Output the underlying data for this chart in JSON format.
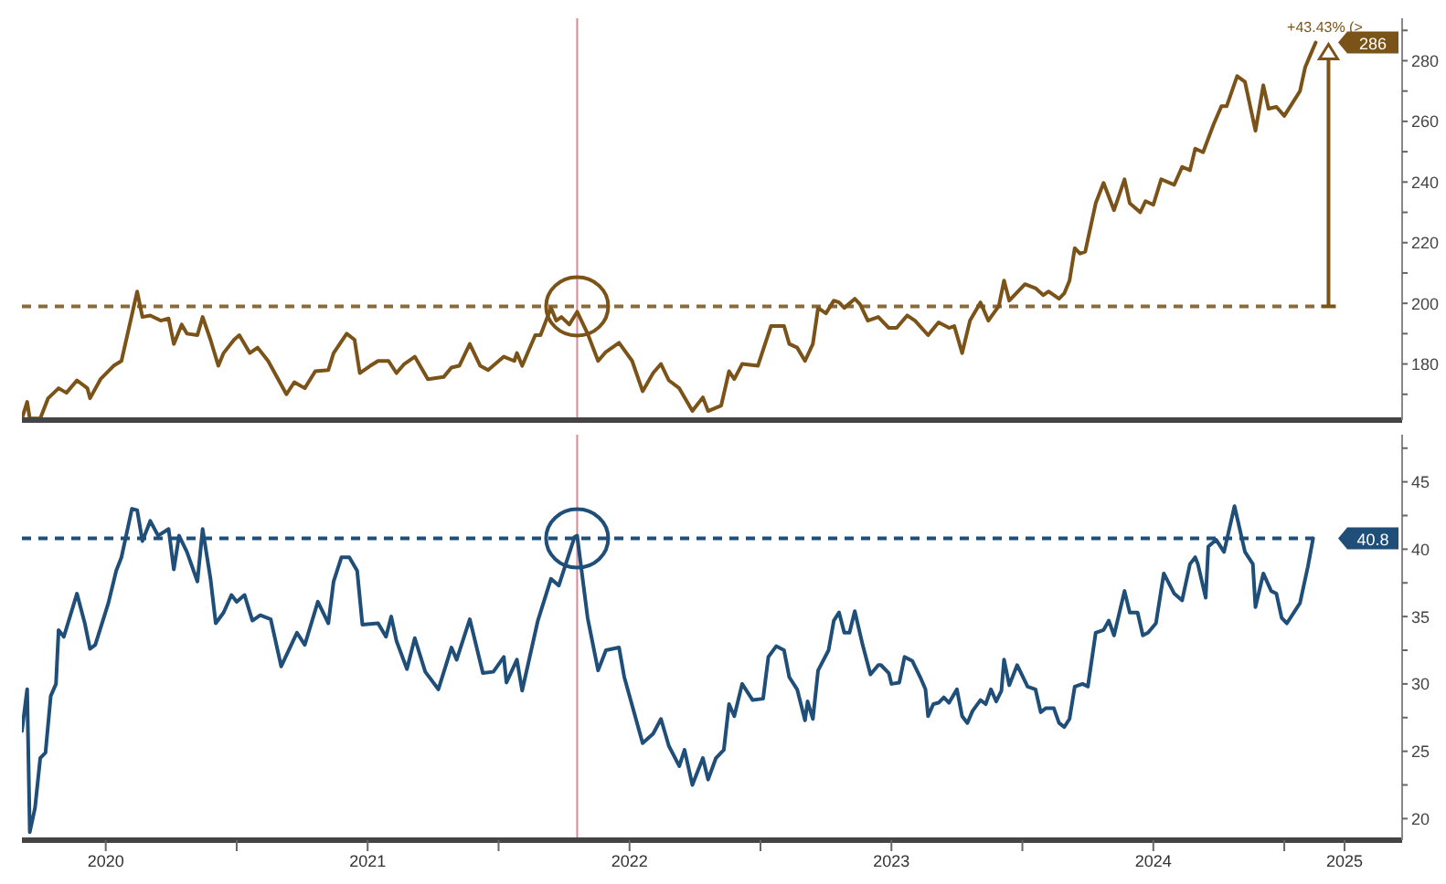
{
  "chart_data": [
    {
      "type": "line",
      "tick_labels": "y",
      "xlim": [
        2020.18,
        2025.45
      ],
      "ylim": [
        161.5,
        294
      ],
      "yticks": [
        {
          "value": 170,
          "label": null
        },
        180,
        {
          "value": 190,
          "label": null
        },
        200,
        {
          "value": 210,
          "label": null
        },
        220,
        {
          "value": 230,
          "label": null
        },
        240,
        {
          "value": 250,
          "label": null
        },
        260,
        {
          "value": 270,
          "label": null
        },
        280,
        {
          "value": 290,
          "label": null
        }
      ],
      "series": [
        {
          "color": "#7b5318",
          "x": [
            2020.18,
            2020.2,
            2020.21,
            2020.25,
            2020.28,
            2020.32,
            2020.35,
            2020.39,
            2020.43,
            2020.44,
            2020.48,
            2020.53,
            2020.56,
            2020.62,
            2020.64,
            2020.67,
            2020.71,
            2020.74,
            2020.76,
            2020.79,
            2020.81,
            2020.85,
            2020.87,
            2020.9,
            2020.93,
            2020.95,
            2020.99,
            2021.01,
            2021.05,
            2021.08,
            2021.12,
            2021.19,
            2021.22,
            2021.26,
            2021.3,
            2021.35,
            2021.37,
            2021.42,
            2021.45,
            2021.47,
            2021.51,
            2021.54,
            2021.58,
            2021.61,
            2021.64,
            2021.68,
            2021.73,
            2021.79,
            2021.82,
            2021.85,
            2021.89,
            2021.93,
            2021.96,
            2022.02,
            2022.06,
            2022.07,
            2022.09,
            2022.14,
            2022.16,
            2022.2,
            2022.22,
            2022.24,
            2022.27,
            2022.3,
            2022.34,
            2022.38,
            2022.41,
            2022.46,
            2022.51,
            2022.55,
            2022.59,
            2022.62,
            2022.65,
            2022.69,
            2022.74,
            2022.78,
            2022.8,
            2022.85,
            2022.88,
            2022.9,
            2022.93,
            2022.99,
            2023.04,
            2023.09,
            2023.11,
            2023.14,
            2023.17,
            2023.2,
            2023.22,
            2023.25,
            2023.28,
            2023.3,
            2023.32,
            2023.36,
            2023.38,
            2023.41,
            2023.45,
            2023.49,
            2023.52,
            2023.56,
            2023.59,
            2023.64,
            2023.68,
            2023.72,
            2023.74,
            2023.77,
            2023.8,
            2023.84,
            2023.87,
            2023.91,
            2023.93,
            2023.95,
            2024.01,
            2024.05,
            2024.08,
            2024.1,
            2024.14,
            2024.16,
            2024.18,
            2024.2,
            2024.22,
            2024.24,
            2024.28,
            2024.31,
            2024.35,
            2024.39,
            2024.41,
            2024.45,
            2024.47,
            2024.5,
            2024.53,
            2024.58,
            2024.61,
            2024.64,
            2024.66,
            2024.69,
            2024.73,
            2024.76,
            2024.78,
            2024.82,
            2024.85,
            2024.89,
            2024.92,
            2024.94,
            2024.97,
            2025.0,
            2025.03,
            2025.06,
            2025.08,
            2025.1,
            2025.12
          ],
          "values": [
            162,
            167.5,
            162,
            162,
            168.7,
            172,
            170.5,
            174.6,
            172,
            168.7,
            175,
            179.4,
            181,
            203.9,
            195.5,
            196,
            194.3,
            195,
            186.6,
            193,
            190,
            189.5,
            195.5,
            188,
            179.4,
            183.6,
            188,
            189.5,
            183.6,
            185.4,
            181,
            170,
            174,
            172,
            177.6,
            178,
            183.6,
            190,
            188,
            177,
            179.4,
            181,
            181,
            177,
            180,
            182.4,
            175,
            175.7,
            178.8,
            179.4,
            186.6,
            179.4,
            178,
            182.4,
            181,
            183.6,
            179.4,
            189.5,
            189.5,
            198.5,
            194.3,
            195.5,
            193,
            197.2,
            190,
            181,
            184,
            187,
            181,
            171,
            177,
            180,
            174.6,
            172,
            164.5,
            169,
            164.5,
            166.3,
            177.6,
            175,
            180,
            179.4,
            192.5,
            192.5,
            186.6,
            185.4,
            181,
            186.6,
            198.5,
            196.7,
            200.9,
            200.3,
            198.5,
            201.5,
            199.7,
            194.3,
            195.5,
            191.9,
            191.9,
            196,
            194.3,
            189.5,
            193.7,
            191.9,
            192.5,
            183.6,
            194.3,
            200.3,
            194.3,
            199.1,
            207.5,
            200.9,
            206.3,
            205,
            202.7,
            203.9,
            201.5,
            203.3,
            207.5,
            218.2,
            216.4,
            217,
            233,
            239.7,
            230.7,
            240.9,
            233,
            230,
            233.7,
            232.5,
            240.9,
            239.1,
            245,
            243.9,
            251,
            249.8,
            259,
            265,
            265,
            274.9,
            273,
            256.9,
            271.9,
            264.2,
            264.8,
            261.8,
            265.9,
            270,
            277.9,
            282,
            286
          ]
        }
      ],
      "ref_lines": [
        {
          "axis": "y",
          "value": 199,
          "color": "#8a6a3a",
          "line_style": "dashed"
        },
        {
          "axis": "x",
          "value": 2022.3,
          "color": "#d98a94",
          "line_style": "solid"
        }
      ],
      "annotations": [
        "+43.43% (>",
        "286"
      ]
    },
    {
      "type": "line",
      "xlim": [
        2020.18,
        2025.45
      ],
      "ylim": [
        18.4,
        48.5
      ],
      "xticks": [
        {
          "value": 2020.5,
          "label": "2020"
        },
        {
          "value": 2021,
          "label": null
        },
        {
          "value": 2021.5,
          "label": "2021"
        },
        {
          "value": 2022,
          "label": null
        },
        {
          "value": 2022.5,
          "label": "2022"
        },
        {
          "value": 2023,
          "label": null
        },
        {
          "value": 2023.5,
          "label": "2023"
        },
        {
          "value": 2024,
          "label": null
        },
        {
          "value": 2024.5,
          "label": "2024"
        },
        {
          "value": 2025,
          "label": null
        },
        {
          "value": 2025.23,
          "label": "2025"
        }
      ],
      "yticks": [
        20,
        {
          "value": 22.5,
          "label": null
        },
        25,
        {
          "value": 27.5,
          "label": null
        },
        30,
        {
          "value": 32.5,
          "label": null
        },
        35,
        {
          "value": 37.5,
          "label": null
        },
        40,
        {
          "value": 42.5,
          "label": null
        },
        45,
        {
          "value": 47.5,
          "label": null
        }
      ],
      "series": [
        {
          "color": "#1f4e79",
          "x": [
            2020.18,
            2020.2,
            2020.21,
            2020.23,
            2020.25,
            2020.27,
            2020.29,
            2020.31,
            2020.32,
            2020.34,
            2020.39,
            2020.42,
            2020.44,
            2020.46,
            2020.51,
            2020.54,
            2020.56,
            2020.6,
            2020.62,
            2020.64,
            2020.67,
            2020.7,
            2020.74,
            2020.76,
            2020.78,
            2020.81,
            2020.85,
            2020.87,
            2020.9,
            2020.92,
            2020.95,
            2020.98,
            2021.0,
            2021.03,
            2021.06,
            2021.09,
            2021.13,
            2021.17,
            2021.23,
            2021.26,
            2021.31,
            2021.35,
            2021.37,
            2021.4,
            2021.43,
            2021.46,
            2021.48,
            2021.54,
            2021.57,
            2021.59,
            2021.61,
            2021.65,
            2021.68,
            2021.72,
            2021.77,
            2021.82,
            2021.84,
            2021.89,
            2021.94,
            2021.98,
            2022.02,
            2022.03,
            2022.07,
            2022.09,
            2022.15,
            2022.2,
            2022.23,
            2022.29,
            2022.3,
            2022.34,
            2022.38,
            2022.41,
            2022.46,
            2022.48,
            2022.55,
            2022.59,
            2022.62,
            2022.65,
            2022.69,
            2022.71,
            2022.74,
            2022.78,
            2022.8,
            2022.83,
            2022.86,
            2022.88,
            2022.9,
            2022.93,
            2022.97,
            2023.01,
            2023.03,
            2023.06,
            2023.09,
            2023.11,
            2023.14,
            2023.17,
            2023.18,
            2023.2,
            2023.22,
            2023.26,
            2023.28,
            2023.3,
            2023.32,
            2023.34,
            2023.36,
            2023.39,
            2023.42,
            2023.45,
            2023.46,
            2023.49,
            2023.5,
            2023.53,
            2023.55,
            2023.58,
            2023.61,
            2023.63,
            2023.64,
            2023.66,
            2023.68,
            2023.7,
            2023.72,
            2023.75,
            2023.77,
            2023.79,
            2023.81,
            2023.84,
            2023.86,
            2023.88,
            2023.9,
            2023.92,
            2023.93,
            2023.95,
            2023.98,
            2024.02,
            2024.05,
            2024.07,
            2024.09,
            2024.12,
            2024.14,
            2024.16,
            2024.18,
            2024.2,
            2024.23,
            2024.25,
            2024.28,
            2024.31,
            2024.33,
            2024.35,
            2024.39,
            2024.41,
            2024.44,
            2024.46,
            2024.48,
            2024.51,
            2024.54,
            2024.58,
            2024.61,
            2024.64,
            2024.66,
            2024.67,
            2024.7,
            2024.71,
            2024.74,
            2024.77,
            2024.81,
            2024.85,
            2024.88,
            2024.89,
            2024.92,
            2024.95,
            2024.97,
            2024.99,
            2025.01,
            2025.06,
            2025.09,
            2025.11
          ],
          "values": [
            26.5,
            29.6,
            19.0,
            20.8,
            24.5,
            24.9,
            29.1,
            30.0,
            34.0,
            33.5,
            36.7,
            34.5,
            32.6,
            32.9,
            36.0,
            38.4,
            39.4,
            43.0,
            42.9,
            40.6,
            42.1,
            41.0,
            41.5,
            38.5,
            41.0,
            39.8,
            37.6,
            41.5,
            37.8,
            34.5,
            35.3,
            36.6,
            36.1,
            36.6,
            34.7,
            35.1,
            34.8,
            31.3,
            33.8,
            32.9,
            36.1,
            34.5,
            37.6,
            39.4,
            39.4,
            38.4,
            34.4,
            34.5,
            33.5,
            35.0,
            33.2,
            31.1,
            33.4,
            30.9,
            29.6,
            32.7,
            31.8,
            34.8,
            30.8,
            30.9,
            32.0,
            30.1,
            31.8,
            29.5,
            34.7,
            37.8,
            37.3,
            40.9,
            41.0,
            34.9,
            31.0,
            32.5,
            32.7,
            30.5,
            25.6,
            26.3,
            27.4,
            25.4,
            23.9,
            25.1,
            22.5,
            24.5,
            22.9,
            24.5,
            25.1,
            28.5,
            27.6,
            30.0,
            28.8,
            28.9,
            32.0,
            32.8,
            32.5,
            30.5,
            29.6,
            27.3,
            28.7,
            27.4,
            31.0,
            32.5,
            34.7,
            35.3,
            33.8,
            33.8,
            35.4,
            32.9,
            30.7,
            31.4,
            31.4,
            30.8,
            30.0,
            30.1,
            32.0,
            31.7,
            30.5,
            29.6,
            27.6,
            28.5,
            28.6,
            29.0,
            28.6,
            29.6,
            27.6,
            27.1,
            28.0,
            28.8,
            28.5,
            29.6,
            28.7,
            29.5,
            31.8,
            29.9,
            31.4,
            29.8,
            29.6,
            27.9,
            28.2,
            28.2,
            27.1,
            26.8,
            27.4,
            29.8,
            30.0,
            29.8,
            33.8,
            34.0,
            34.7,
            33.6,
            36.9,
            35.3,
            35.3,
            33.6,
            33.8,
            34.5,
            38.2,
            36.7,
            36.2,
            38.9,
            39.4,
            38.9,
            36.4,
            40.2,
            40.7,
            39.8,
            43.2,
            39.8,
            38.9,
            35.7,
            38.2,
            36.9,
            36.7,
            34.9,
            34.5,
            36.0,
            38.7,
            40.8
          ]
        }
      ],
      "ref_lines": [
        {
          "axis": "y",
          "value": 40.8,
          "color": "#1f4e79",
          "line_style": "dashed"
        },
        {
          "axis": "x",
          "value": 2022.3,
          "color": "#d98a94",
          "line_style": "solid"
        }
      ],
      "annotations": [
        "40.8"
      ]
    }
  ]
}
